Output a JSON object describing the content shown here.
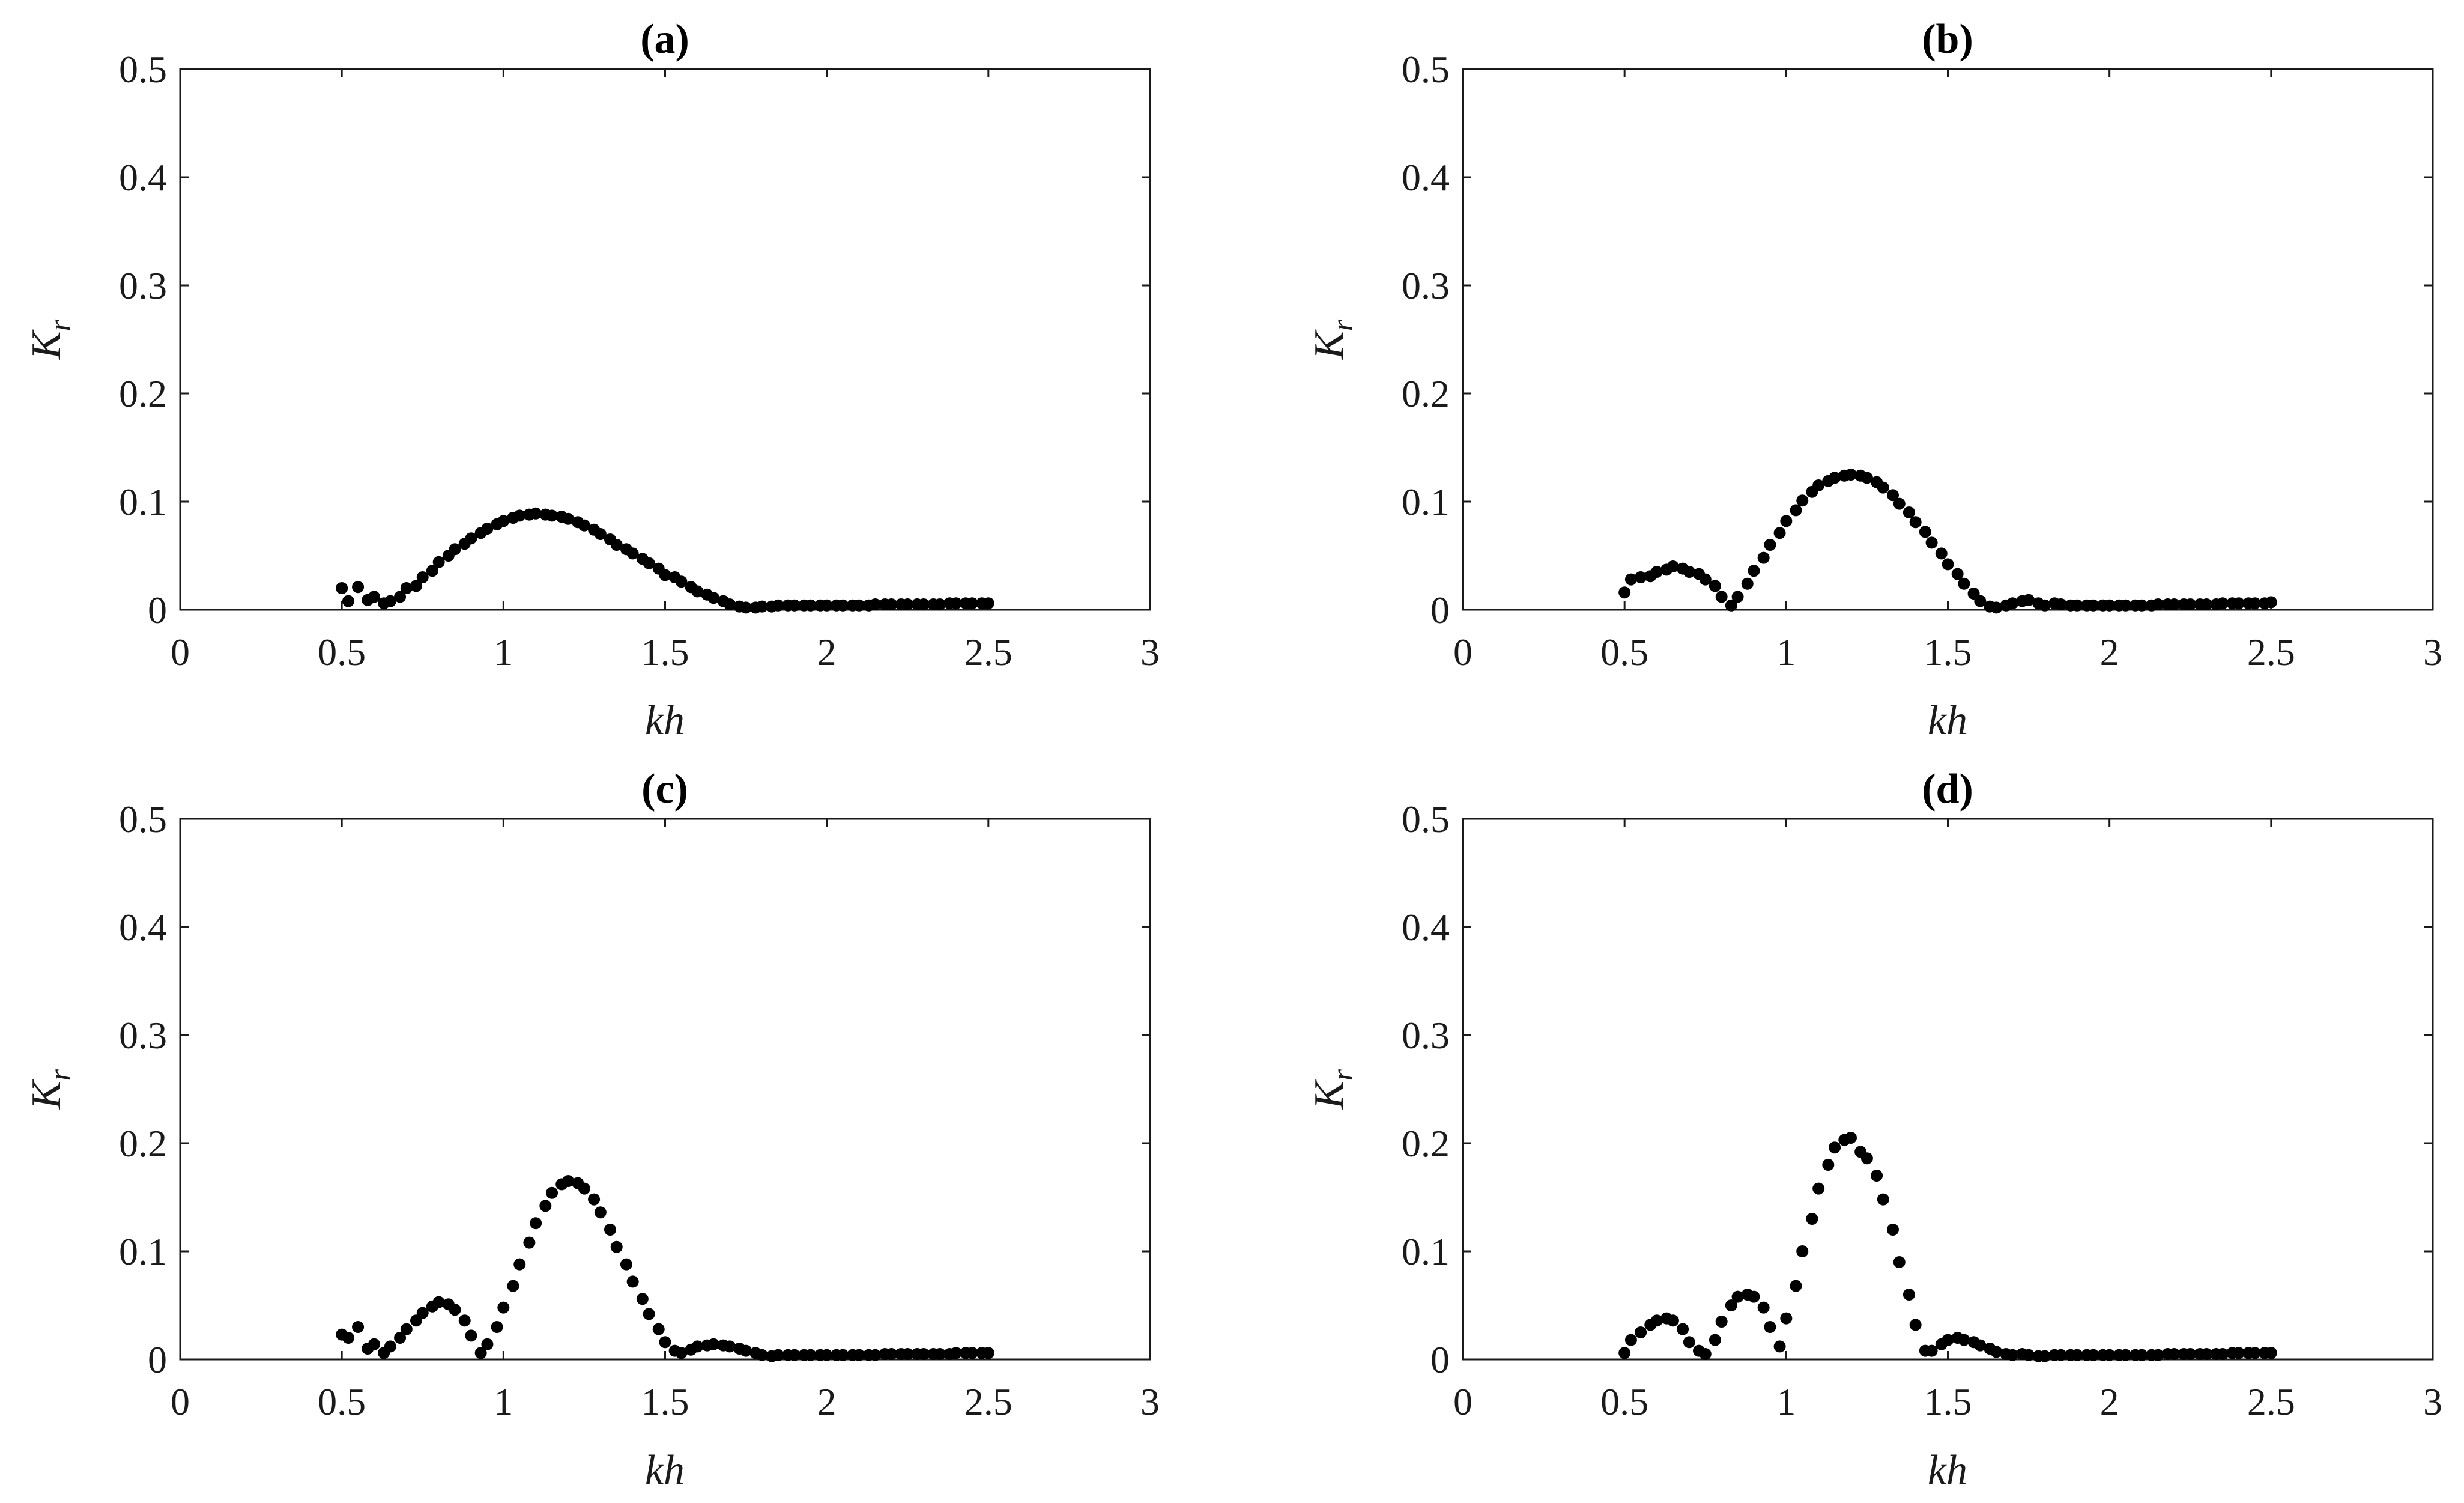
{
  "colors": {
    "marker": "#000000",
    "axis": "#1a1a1a",
    "background": "#ffffff"
  },
  "chart_data": [
    {
      "type": "scatter",
      "title": "(a)",
      "xlabel": "kh",
      "ylabel": "K",
      "ylabel_sub": "r",
      "xlim": [
        0,
        3
      ],
      "ylim": [
        0,
        0.5
      ],
      "xticks": [
        "0",
        "0.5",
        "1",
        "1.5",
        "2",
        "2.5",
        "3"
      ],
      "yticks": [
        "0",
        "0.1",
        "0.2",
        "0.3",
        "0.4",
        "0.5"
      ],
      "grid": false,
      "series": [
        {
          "x": [
            0.5,
            0.52,
            0.55,
            0.58,
            0.6,
            0.63,
            0.65,
            0.68,
            0.7,
            0.73,
            0.75,
            0.78,
            0.8,
            0.83,
            0.85,
            0.88,
            0.9,
            0.93,
            0.95,
            0.98,
            1.0,
            1.03,
            1.05,
            1.08,
            1.1,
            1.13,
            1.15,
            1.18,
            1.2,
            1.23,
            1.25,
            1.28,
            1.3,
            1.33,
            1.35,
            1.38,
            1.4,
            1.43,
            1.45,
            1.48,
            1.5,
            1.53,
            1.55,
            1.58,
            1.6,
            1.63,
            1.65,
            1.68,
            1.7,
            1.73,
            1.75,
            1.78,
            1.8,
            1.83,
            1.85,
            1.88,
            1.9,
            1.93,
            1.95,
            1.98,
            2.0,
            2.03,
            2.05,
            2.08,
            2.1,
            2.13,
            2.15,
            2.18,
            2.2,
            2.23,
            2.25,
            2.28,
            2.3,
            2.33,
            2.35,
            2.38,
            2.4,
            2.43,
            2.45,
            2.48,
            2.5
          ],
          "y": [
            0.02,
            0.008,
            0.021,
            0.009,
            0.012,
            0.006,
            0.008,
            0.012,
            0.02,
            0.022,
            0.03,
            0.036,
            0.044,
            0.05,
            0.056,
            0.061,
            0.066,
            0.071,
            0.075,
            0.079,
            0.082,
            0.085,
            0.087,
            0.088,
            0.089,
            0.088,
            0.087,
            0.086,
            0.084,
            0.081,
            0.078,
            0.074,
            0.07,
            0.065,
            0.06,
            0.056,
            0.052,
            0.047,
            0.043,
            0.038,
            0.032,
            0.03,
            0.026,
            0.021,
            0.017,
            0.014,
            0.011,
            0.008,
            0.005,
            0.003,
            0.002,
            0.002,
            0.003,
            0.003,
            0.004,
            0.004,
            0.004,
            0.004,
            0.004,
            0.004,
            0.004,
            0.004,
            0.004,
            0.004,
            0.004,
            0.004,
            0.005,
            0.005,
            0.005,
            0.005,
            0.005,
            0.005,
            0.005,
            0.005,
            0.005,
            0.006,
            0.006,
            0.006,
            0.006,
            0.006,
            0.006
          ]
        }
      ]
    },
    {
      "type": "scatter",
      "title": "(b)",
      "xlabel": "kh",
      "ylabel": "K",
      "ylabel_sub": "r",
      "xlim": [
        0,
        3
      ],
      "ylim": [
        0,
        0.5
      ],
      "xticks": [
        "0",
        "0.5",
        "1",
        "1.5",
        "2",
        "2.5",
        "3"
      ],
      "yticks": [
        "0",
        "0.1",
        "0.2",
        "0.3",
        "0.4",
        "0.5"
      ],
      "grid": false,
      "series": [
        {
          "x": [
            0.5,
            0.52,
            0.55,
            0.58,
            0.6,
            0.63,
            0.65,
            0.68,
            0.7,
            0.73,
            0.75,
            0.78,
            0.8,
            0.83,
            0.85,
            0.88,
            0.9,
            0.93,
            0.95,
            0.98,
            1.0,
            1.03,
            1.05,
            1.08,
            1.1,
            1.13,
            1.15,
            1.18,
            1.2,
            1.23,
            1.25,
            1.28,
            1.3,
            1.33,
            1.35,
            1.38,
            1.4,
            1.43,
            1.45,
            1.48,
            1.5,
            1.53,
            1.55,
            1.58,
            1.6,
            1.63,
            1.65,
            1.68,
            1.7,
            1.73,
            1.75,
            1.78,
            1.8,
            1.83,
            1.85,
            1.88,
            1.9,
            1.93,
            1.95,
            1.98,
            2.0,
            2.03,
            2.05,
            2.08,
            2.1,
            2.13,
            2.15,
            2.18,
            2.2,
            2.23,
            2.25,
            2.28,
            2.3,
            2.33,
            2.35,
            2.38,
            2.4,
            2.43,
            2.45,
            2.48,
            2.5
          ],
          "y": [
            0.016,
            0.028,
            0.03,
            0.031,
            0.035,
            0.037,
            0.04,
            0.038,
            0.035,
            0.033,
            0.028,
            0.022,
            0.012,
            0.004,
            0.012,
            0.024,
            0.036,
            0.048,
            0.06,
            0.071,
            0.082,
            0.092,
            0.101,
            0.109,
            0.115,
            0.119,
            0.122,
            0.124,
            0.125,
            0.124,
            0.122,
            0.118,
            0.113,
            0.106,
            0.098,
            0.09,
            0.081,
            0.072,
            0.062,
            0.052,
            0.042,
            0.033,
            0.024,
            0.015,
            0.008,
            0.003,
            0.002,
            0.004,
            0.006,
            0.008,
            0.009,
            0.006,
            0.004,
            0.006,
            0.005,
            0.004,
            0.004,
            0.004,
            0.004,
            0.004,
            0.004,
            0.004,
            0.004,
            0.004,
            0.004,
            0.004,
            0.005,
            0.005,
            0.005,
            0.005,
            0.005,
            0.005,
            0.005,
            0.005,
            0.006,
            0.006,
            0.006,
            0.006,
            0.006,
            0.006,
            0.007
          ]
        }
      ]
    },
    {
      "type": "scatter",
      "title": "(c)",
      "xlabel": "kh",
      "ylabel": "K",
      "ylabel_sub": "r",
      "xlim": [
        0,
        3
      ],
      "ylim": [
        0,
        0.5
      ],
      "xticks": [
        "0",
        "0.5",
        "1",
        "1.5",
        "2",
        "2.5",
        "3"
      ],
      "yticks": [
        "0",
        "0.1",
        "0.2",
        "0.3",
        "0.4",
        "0.5"
      ],
      "grid": false,
      "series": [
        {
          "x": [
            0.5,
            0.52,
            0.55,
            0.58,
            0.6,
            0.63,
            0.65,
            0.68,
            0.7,
            0.73,
            0.75,
            0.78,
            0.8,
            0.83,
            0.85,
            0.88,
            0.9,
            0.93,
            0.95,
            0.98,
            1.0,
            1.03,
            1.05,
            1.08,
            1.1,
            1.13,
            1.15,
            1.18,
            1.2,
            1.23,
            1.25,
            1.28,
            1.3,
            1.33,
            1.35,
            1.38,
            1.4,
            1.43,
            1.45,
            1.48,
            1.5,
            1.53,
            1.55,
            1.58,
            1.6,
            1.63,
            1.65,
            1.68,
            1.7,
            1.73,
            1.75,
            1.78,
            1.8,
            1.83,
            1.85,
            1.88,
            1.9,
            1.93,
            1.95,
            1.98,
            2.0,
            2.03,
            2.05,
            2.08,
            2.1,
            2.13,
            2.15,
            2.18,
            2.2,
            2.23,
            2.25,
            2.28,
            2.3,
            2.33,
            2.35,
            2.38,
            2.4,
            2.43,
            2.45,
            2.48,
            2.5
          ],
          "y": [
            0.023,
            0.02,
            0.03,
            0.01,
            0.014,
            0.006,
            0.012,
            0.02,
            0.028,
            0.036,
            0.043,
            0.049,
            0.053,
            0.051,
            0.046,
            0.036,
            0.022,
            0.006,
            0.014,
            0.03,
            0.048,
            0.068,
            0.088,
            0.108,
            0.126,
            0.142,
            0.154,
            0.162,
            0.165,
            0.163,
            0.158,
            0.148,
            0.136,
            0.12,
            0.104,
            0.088,
            0.072,
            0.056,
            0.042,
            0.028,
            0.016,
            0.008,
            0.006,
            0.009,
            0.012,
            0.013,
            0.014,
            0.013,
            0.012,
            0.01,
            0.008,
            0.006,
            0.004,
            0.003,
            0.004,
            0.004,
            0.004,
            0.004,
            0.004,
            0.004,
            0.004,
            0.004,
            0.004,
            0.004,
            0.004,
            0.004,
            0.004,
            0.005,
            0.005,
            0.005,
            0.005,
            0.005,
            0.005,
            0.005,
            0.005,
            0.005,
            0.006,
            0.006,
            0.006,
            0.006,
            0.006
          ]
        }
      ]
    },
    {
      "type": "scatter",
      "title": "(d)",
      "xlabel": "kh",
      "ylabel": "K",
      "ylabel_sub": "r",
      "xlim": [
        0,
        3
      ],
      "ylim": [
        0,
        0.5
      ],
      "xticks": [
        "0",
        "0.5",
        "1",
        "1.5",
        "2",
        "2.5",
        "3"
      ],
      "yticks": [
        "0",
        "0.1",
        "0.2",
        "0.3",
        "0.4",
        "0.5"
      ],
      "grid": false,
      "series": [
        {
          "x": [
            0.5,
            0.52,
            0.55,
            0.58,
            0.6,
            0.63,
            0.65,
            0.68,
            0.7,
            0.73,
            0.75,
            0.78,
            0.8,
            0.83,
            0.85,
            0.88,
            0.9,
            0.93,
            0.95,
            0.98,
            1.0,
            1.03,
            1.05,
            1.08,
            1.1,
            1.13,
            1.15,
            1.18,
            1.2,
            1.23,
            1.25,
            1.28,
            1.3,
            1.33,
            1.35,
            1.38,
            1.4,
            1.43,
            1.45,
            1.48,
            1.5,
            1.53,
            1.55,
            1.58,
            1.6,
            1.63,
            1.65,
            1.68,
            1.7,
            1.73,
            1.75,
            1.78,
            1.8,
            1.83,
            1.85,
            1.88,
            1.9,
            1.93,
            1.95,
            1.98,
            2.0,
            2.03,
            2.05,
            2.08,
            2.1,
            2.13,
            2.15,
            2.18,
            2.2,
            2.23,
            2.25,
            2.28,
            2.3,
            2.33,
            2.35,
            2.38,
            2.4,
            2.43,
            2.45,
            2.48,
            2.5
          ],
          "y": [
            0.006,
            0.018,
            0.025,
            0.032,
            0.036,
            0.038,
            0.036,
            0.028,
            0.016,
            0.008,
            0.005,
            0.018,
            0.035,
            0.05,
            0.058,
            0.06,
            0.058,
            0.048,
            0.03,
            0.012,
            0.038,
            0.068,
            0.1,
            0.13,
            0.158,
            0.18,
            0.196,
            0.203,
            0.205,
            0.192,
            0.186,
            0.17,
            0.148,
            0.12,
            0.09,
            0.06,
            0.032,
            0.008,
            0.008,
            0.014,
            0.018,
            0.02,
            0.018,
            0.016,
            0.013,
            0.01,
            0.007,
            0.005,
            0.004,
            0.005,
            0.004,
            0.003,
            0.003,
            0.004,
            0.004,
            0.004,
            0.004,
            0.004,
            0.004,
            0.004,
            0.004,
            0.004,
            0.004,
            0.004,
            0.004,
            0.004,
            0.004,
            0.005,
            0.005,
            0.005,
            0.005,
            0.005,
            0.005,
            0.005,
            0.005,
            0.006,
            0.006,
            0.006,
            0.006,
            0.006,
            0.006
          ]
        }
      ]
    }
  ]
}
